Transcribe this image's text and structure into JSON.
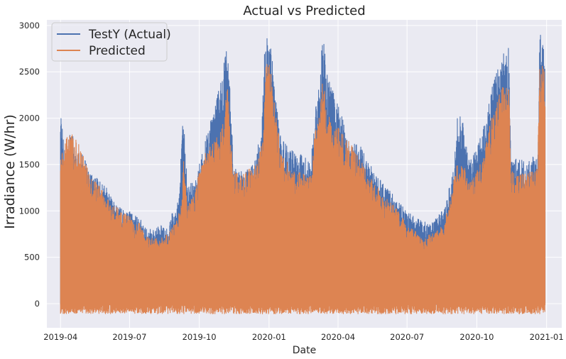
{
  "chart_data": {
    "type": "line",
    "title": "Actual vs Predicted",
    "xlabel": "Date",
    "ylabel": "Irradiance (W/hr)",
    "x_range": [
      "2019-03-14",
      "2021-01-21"
    ],
    "ylim": [
      -260,
      3060
    ],
    "xticks": [
      "2019-04",
      "2019-07",
      "2019-10",
      "2020-01",
      "2020-04",
      "2020-07",
      "2020-10",
      "2021-01"
    ],
    "yticks": [
      0,
      500,
      1000,
      1500,
      2000,
      2500,
      3000
    ],
    "grid": true,
    "legend": "upper-left",
    "background_color": "#eaeaf2",
    "grid_color": "#ffffff",
    "series": [
      {
        "name": "TestY (Actual)",
        "color": "#4c72b0",
        "floor_min": -10,
        "envelope": [
          [
            "2019-04-01",
            2220
          ],
          [
            "2019-04-03",
            1950
          ],
          [
            "2019-04-08",
            1650
          ],
          [
            "2019-04-15",
            1880
          ],
          [
            "2019-04-22",
            1650
          ],
          [
            "2019-05-01",
            1600
          ],
          [
            "2019-05-10",
            1400
          ],
          [
            "2019-05-20",
            1350
          ],
          [
            "2019-06-01",
            1250
          ],
          [
            "2019-06-10",
            1100
          ],
          [
            "2019-06-20",
            1050
          ],
          [
            "2019-07-01",
            1000
          ],
          [
            "2019-07-08",
            960
          ],
          [
            "2019-07-15",
            920
          ],
          [
            "2019-07-22",
            820
          ],
          [
            "2019-08-01",
            800
          ],
          [
            "2019-08-10",
            850
          ],
          [
            "2019-08-20",
            800
          ],
          [
            "2019-08-27",
            1000
          ],
          [
            "2019-09-01",
            1000
          ],
          [
            "2019-09-05",
            1300
          ],
          [
            "2019-09-10",
            2080
          ],
          [
            "2019-09-15",
            1300
          ],
          [
            "2019-09-25",
            1300
          ],
          [
            "2019-10-01",
            1500
          ],
          [
            "2019-10-10",
            1800
          ],
          [
            "2019-10-20",
            2100
          ],
          [
            "2019-10-28",
            2350
          ],
          [
            "2019-11-01",
            2500
          ],
          [
            "2019-11-05",
            2750
          ],
          [
            "2019-11-08",
            2830
          ],
          [
            "2019-11-11",
            2300
          ],
          [
            "2019-11-15",
            1500
          ],
          [
            "2019-11-25",
            1450
          ],
          [
            "2019-12-05",
            1500
          ],
          [
            "2019-12-15",
            1600
          ],
          [
            "2019-12-22",
            1900
          ],
          [
            "2019-12-27",
            2900
          ],
          [
            "2020-01-02",
            2880
          ],
          [
            "2020-01-08",
            2400
          ],
          [
            "2020-01-12",
            2100
          ],
          [
            "2020-01-18",
            1800
          ],
          [
            "2020-01-28",
            1650
          ],
          [
            "2020-02-05",
            1650
          ],
          [
            "2020-02-15",
            1600
          ],
          [
            "2020-02-25",
            1500
          ],
          [
            "2020-03-02",
            2150
          ],
          [
            "2020-03-08",
            2500
          ],
          [
            "2020-03-12",
            2910
          ],
          [
            "2020-03-18",
            2500
          ],
          [
            "2020-03-25",
            2300
          ],
          [
            "2020-04-01",
            2200
          ],
          [
            "2020-04-10",
            1900
          ],
          [
            "2020-04-20",
            1750
          ],
          [
            "2020-05-01",
            1700
          ],
          [
            "2020-05-10",
            1550
          ],
          [
            "2020-05-20",
            1400
          ],
          [
            "2020-06-01",
            1300
          ],
          [
            "2020-06-10",
            1200
          ],
          [
            "2020-06-20",
            1100
          ],
          [
            "2020-07-01",
            1000
          ],
          [
            "2020-07-10",
            950
          ],
          [
            "2020-07-20",
            900
          ],
          [
            "2020-08-01",
            850
          ],
          [
            "2020-08-10",
            950
          ],
          [
            "2020-08-20",
            1050
          ],
          [
            "2020-09-01",
            1500
          ],
          [
            "2020-09-05",
            2000
          ],
          [
            "2020-09-10",
            2120
          ],
          [
            "2020-09-14",
            1900
          ],
          [
            "2020-09-20",
            1550
          ],
          [
            "2020-09-30",
            1650
          ],
          [
            "2020-10-10",
            1900
          ],
          [
            "2020-10-20",
            2300
          ],
          [
            "2020-11-01",
            2650
          ],
          [
            "2020-11-10",
            2750
          ],
          [
            "2020-11-12",
            2780
          ],
          [
            "2020-11-15",
            1600
          ],
          [
            "2020-11-25",
            1550
          ],
          [
            "2020-12-05",
            1550
          ],
          [
            "2020-12-15",
            1600
          ],
          [
            "2020-12-20",
            1580
          ],
          [
            "2020-12-23",
            2930
          ],
          [
            "2020-12-27",
            2900
          ],
          [
            "2020-12-30",
            2700
          ]
        ]
      },
      {
        "name": "Predicted",
        "color": "#dd8452",
        "floor_min": -110,
        "envelope": [
          [
            "2019-04-01",
            1700
          ],
          [
            "2019-04-05",
            1600
          ],
          [
            "2019-04-10",
            1870
          ],
          [
            "2019-04-20",
            1800
          ],
          [
            "2019-05-01",
            1650
          ],
          [
            "2019-05-10",
            1350
          ],
          [
            "2019-05-20",
            1300
          ],
          [
            "2019-06-01",
            1150
          ],
          [
            "2019-06-10",
            1080
          ],
          [
            "2019-06-20",
            1000
          ],
          [
            "2019-07-01",
            950
          ],
          [
            "2019-07-08",
            850
          ],
          [
            "2019-07-15",
            900
          ],
          [
            "2019-07-22",
            720
          ],
          [
            "2019-08-01",
            720
          ],
          [
            "2019-08-10",
            700
          ],
          [
            "2019-08-20",
            750
          ],
          [
            "2019-09-01",
            900
          ],
          [
            "2019-09-08",
            1100
          ],
          [
            "2019-09-10",
            1650
          ],
          [
            "2019-09-15",
            1100
          ],
          [
            "2019-09-25",
            1200
          ],
          [
            "2019-10-01",
            1450
          ],
          [
            "2019-10-10",
            1650
          ],
          [
            "2019-10-20",
            1750
          ],
          [
            "2019-10-28",
            1850
          ],
          [
            "2019-11-03",
            2000
          ],
          [
            "2019-11-07",
            2480
          ],
          [
            "2019-11-11",
            1800
          ],
          [
            "2019-11-15",
            1450
          ],
          [
            "2019-11-25",
            1400
          ],
          [
            "2019-12-05",
            1450
          ],
          [
            "2019-12-15",
            1500
          ],
          [
            "2019-12-24",
            1800
          ],
          [
            "2019-12-28",
            2660
          ],
          [
            "2020-01-03",
            2600
          ],
          [
            "2020-01-08",
            2200
          ],
          [
            "2020-01-12",
            1900
          ],
          [
            "2020-01-20",
            1600
          ],
          [
            "2020-02-01",
            1450
          ],
          [
            "2020-02-15",
            1400
          ],
          [
            "2020-02-25",
            1400
          ],
          [
            "2020-03-02",
            1900
          ],
          [
            "2020-03-08",
            2050
          ],
          [
            "2020-03-12",
            2450
          ],
          [
            "2020-03-18",
            2050
          ],
          [
            "2020-03-25",
            1950
          ],
          [
            "2020-04-01",
            1900
          ],
          [
            "2020-04-10",
            1800
          ],
          [
            "2020-04-20",
            1700
          ],
          [
            "2020-05-01",
            1550
          ],
          [
            "2020-05-10",
            1400
          ],
          [
            "2020-05-20",
            1300
          ],
          [
            "2020-06-01",
            1150
          ],
          [
            "2020-06-10",
            1100
          ],
          [
            "2020-06-20",
            1000
          ],
          [
            "2020-07-01",
            850
          ],
          [
            "2020-07-10",
            800
          ],
          [
            "2020-07-20",
            700
          ],
          [
            "2020-08-01",
            750
          ],
          [
            "2020-08-10",
            800
          ],
          [
            "2020-08-20",
            900
          ],
          [
            "2020-09-01",
            1350
          ],
          [
            "2020-09-05",
            1500
          ],
          [
            "2020-09-10",
            1550
          ],
          [
            "2020-09-14",
            1500
          ],
          [
            "2020-09-20",
            1300
          ],
          [
            "2020-09-30",
            1400
          ],
          [
            "2020-10-10",
            1650
          ],
          [
            "2020-10-20",
            2000
          ],
          [
            "2020-11-01",
            2300
          ],
          [
            "2020-11-10",
            2400
          ],
          [
            "2020-11-12",
            2450
          ],
          [
            "2020-11-15",
            1450
          ],
          [
            "2020-11-25",
            1400
          ],
          [
            "2020-12-05",
            1400
          ],
          [
            "2020-12-15",
            1450
          ],
          [
            "2020-12-20",
            1500
          ],
          [
            "2020-12-23",
            2700
          ],
          [
            "2020-12-27",
            2650
          ],
          [
            "2020-12-30",
            2550
          ]
        ]
      }
    ]
  }
}
